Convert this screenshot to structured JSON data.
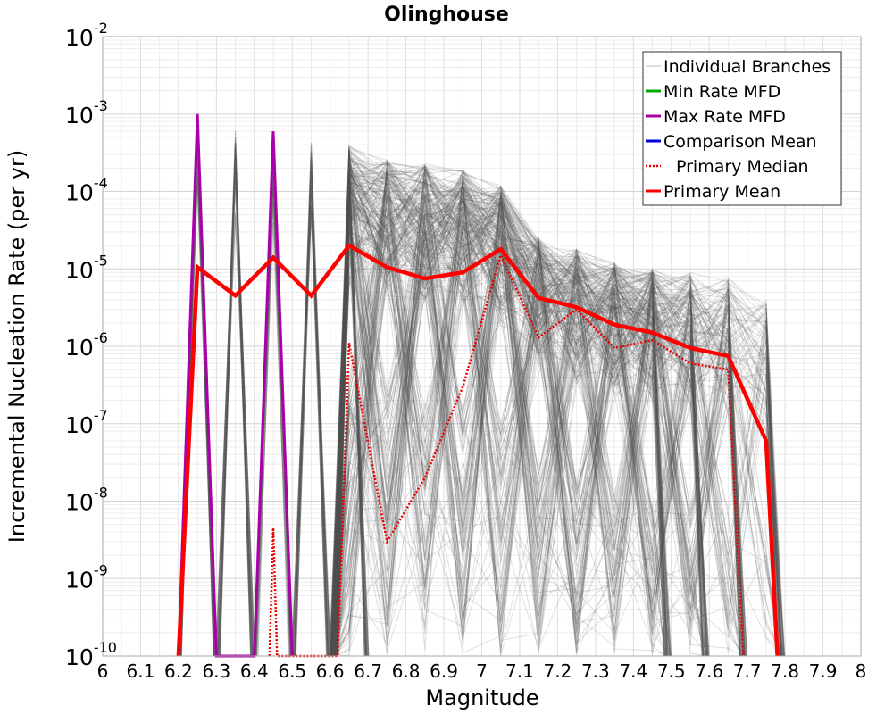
{
  "chart_data": {
    "type": "line",
    "title": "Olinghouse",
    "xlabel": "Magnitude",
    "ylabel": "Incremental Nucleation Rate (per yr)",
    "xlim": [
      6,
      8
    ],
    "ylim": [
      1e-10,
      0.01
    ],
    "y_scale": "log",
    "grid": true,
    "legend_position": "top-right",
    "x_ticks": [
      "6",
      "6.1",
      "6.2",
      "6.3",
      "6.4",
      "6.5",
      "6.6",
      "6.7",
      "6.8",
      "6.9",
      "7",
      "7.1",
      "7.2",
      "7.3",
      "7.4",
      "7.5",
      "7.6",
      "7.7",
      "7.8",
      "7.9",
      "8"
    ],
    "y_ticks": [
      {
        "value": 1e-10,
        "base": "10",
        "exp": "-10"
      },
      {
        "value": 1e-09,
        "base": "10",
        "exp": "-9"
      },
      {
        "value": 1e-08,
        "base": "10",
        "exp": "-8"
      },
      {
        "value": 1e-07,
        "base": "10",
        "exp": "-7"
      },
      {
        "value": 1e-06,
        "base": "10",
        "exp": "-6"
      },
      {
        "value": 1e-05,
        "base": "10",
        "exp": "-5"
      },
      {
        "value": 0.0001,
        "base": "10",
        "exp": "-4"
      },
      {
        "value": 0.001,
        "base": "10",
        "exp": "-3"
      },
      {
        "value": 0.01,
        "base": "10",
        "exp": "-2"
      }
    ],
    "series": [
      {
        "name": "Individual Branches",
        "color": "#555555",
        "style": "thin",
        "peak_envelope": [
          {
            "x": 6.25,
            "y": 0.0009
          },
          {
            "x": 6.35,
            "y": 0.0007
          },
          {
            "x": 6.45,
            "y": 0.0006
          },
          {
            "x": 6.55,
            "y": 0.00045
          },
          {
            "x": 6.65,
            "y": 0.0004
          },
          {
            "x": 6.75,
            "y": 0.00026
          },
          {
            "x": 6.85,
            "y": 0.00023
          },
          {
            "x": 6.95,
            "y": 0.0002
          },
          {
            "x": 7.05,
            "y": 0.00012
          },
          {
            "x": 7.15,
            "y": 2.5e-05
          },
          {
            "x": 7.25,
            "y": 1.8e-05
          },
          {
            "x": 7.35,
            "y": 1.2e-05
          },
          {
            "x": 7.45,
            "y": 1e-05
          },
          {
            "x": 7.55,
            "y": 9e-06
          },
          {
            "x": 7.65,
            "y": 8e-06
          },
          {
            "x": 7.75,
            "y": 4e-06
          }
        ]
      },
      {
        "name": "Min Rate MFD",
        "color": "#00aa00",
        "style": "solid",
        "points": []
      },
      {
        "name": "Max Rate MFD",
        "color": "#aa00aa",
        "style": "solid",
        "points": [
          {
            "x": 6.2,
            "y": 1e-10
          },
          {
            "x": 6.25,
            "y": 0.001
          },
          {
            "x": 6.3,
            "y": 1e-10
          },
          {
            "x": 6.4,
            "y": 1e-10
          },
          {
            "x": 6.45,
            "y": 0.0006
          },
          {
            "x": 6.5,
            "y": 1e-10
          }
        ]
      },
      {
        "name": "Comparison Mean",
        "color": "#0000dd",
        "style": "solid",
        "points": []
      },
      {
        "name": "Primary Median",
        "color": "#ee0000",
        "style": "dotted",
        "points": [
          {
            "x": 6.44,
            "y": 1e-10
          },
          {
            "x": 6.45,
            "y": 4.5e-09
          },
          {
            "x": 6.46,
            "y": 1e-10
          },
          {
            "x": 6.62,
            "y": 1e-10
          },
          {
            "x": 6.65,
            "y": 1.1e-06
          },
          {
            "x": 6.75,
            "y": 3e-09
          },
          {
            "x": 6.85,
            "y": 2e-08
          },
          {
            "x": 6.95,
            "y": 3e-07
          },
          {
            "x": 7.05,
            "y": 1.5e-05
          },
          {
            "x": 7.15,
            "y": 1.3e-06
          },
          {
            "x": 7.25,
            "y": 3e-06
          },
          {
            "x": 7.35,
            "y": 9.5e-07
          },
          {
            "x": 7.45,
            "y": 1.2e-06
          },
          {
            "x": 7.55,
            "y": 6e-07
          },
          {
            "x": 7.65,
            "y": 5e-07
          },
          {
            "x": 7.69,
            "y": 1e-10
          }
        ]
      },
      {
        "name": "Primary Mean",
        "color": "#ff0000",
        "style": "thick",
        "points": [
          {
            "x": 6.2,
            "y": 1e-10
          },
          {
            "x": 6.25,
            "y": 1.05e-05
          },
          {
            "x": 6.35,
            "y": 4.5e-06
          },
          {
            "x": 6.45,
            "y": 1.4e-05
          },
          {
            "x": 6.55,
            "y": 4.5e-06
          },
          {
            "x": 6.65,
            "y": 2e-05
          },
          {
            "x": 6.75,
            "y": 1.05e-05
          },
          {
            "x": 6.85,
            "y": 7.5e-06
          },
          {
            "x": 6.95,
            "y": 9e-06
          },
          {
            "x": 7.05,
            "y": 1.8e-05
          },
          {
            "x": 7.15,
            "y": 4.2e-06
          },
          {
            "x": 7.25,
            "y": 3.2e-06
          },
          {
            "x": 7.35,
            "y": 1.9e-06
          },
          {
            "x": 7.45,
            "y": 1.5e-06
          },
          {
            "x": 7.55,
            "y": 9.5e-07
          },
          {
            "x": 7.65,
            "y": 7.5e-07
          },
          {
            "x": 7.75,
            "y": 6e-08
          },
          {
            "x": 7.78,
            "y": 1e-10
          }
        ]
      }
    ]
  }
}
